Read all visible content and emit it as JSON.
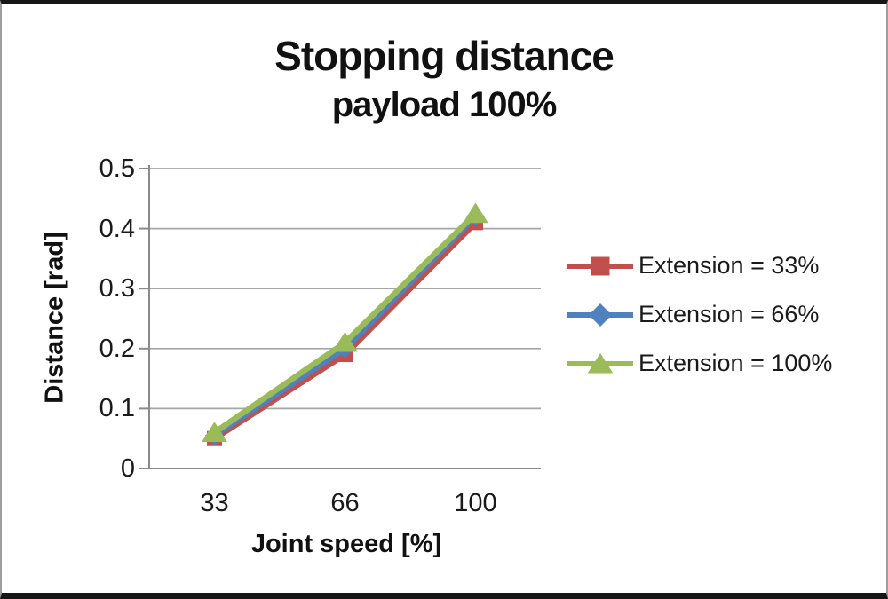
{
  "colors": {
    "gridline": "#A6A6A6",
    "axis": "#8A8A8A",
    "text": "#1A1A1A",
    "frame": "#161616",
    "background": "#FFFFFF"
  },
  "chart_data": {
    "type": "line",
    "title": "Stopping distance",
    "subtitle": "payload 100%",
    "xlabel": "Joint speed [%]",
    "ylabel": "Distance [rad]",
    "categories": [
      "33",
      "66",
      "100"
    ],
    "y_ticks": [
      "0.5",
      "0.4",
      "0.3",
      "0.2",
      "0.1",
      "0"
    ],
    "ylim": [
      0,
      0.5
    ],
    "grid": "horizontal-only",
    "legend_position": "right",
    "series": [
      {
        "name": "Extension = 33%",
        "marker": "square",
        "color": "#C0504D",
        "values": [
          0.05,
          0.19,
          0.41
        ]
      },
      {
        "name": "Extension = 66%",
        "marker": "diamond",
        "color": "#4F81BD",
        "values": [
          0.055,
          0.2,
          0.42
        ]
      },
      {
        "name": "Extension = 100%",
        "marker": "triangle",
        "color": "#9BBB59",
        "values": [
          0.06,
          0.21,
          0.425
        ]
      }
    ]
  }
}
